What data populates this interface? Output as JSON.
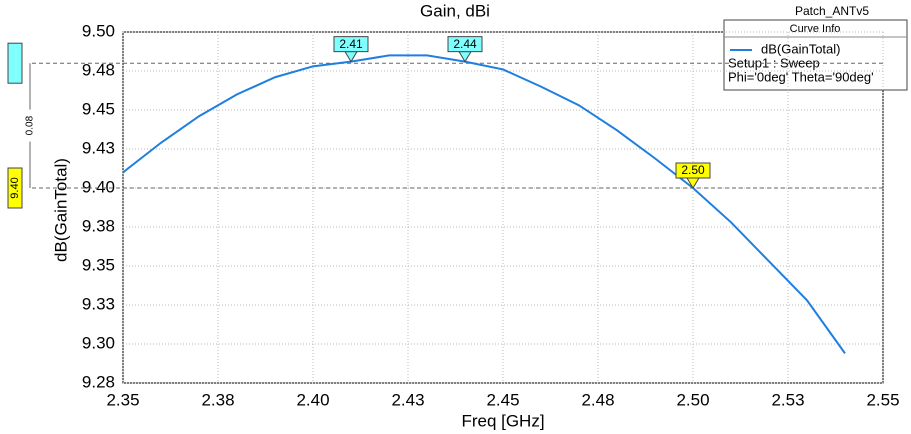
{
  "chart_data": {
    "type": "line",
    "title": "Gain, dBi",
    "project": "Patch_ANTv5",
    "x_label": "Freq [GHz]",
    "y_label": "dB(GainTotal)",
    "legend": {
      "title": "Curve Info",
      "lines": [
        "Setup1 : Sweep",
        "Phi='0deg' Theta='90deg'"
      ]
    },
    "x": [
      2.35,
      2.36,
      2.37,
      2.38,
      2.39,
      2.4,
      2.41,
      2.42,
      2.43,
      2.44,
      2.45,
      2.46,
      2.47,
      2.48,
      2.49,
      2.5,
      2.51,
      2.52,
      2.53,
      2.54
    ],
    "series": [
      {
        "name": "dB(GainTotal)",
        "color": "#1e7fe0",
        "values": [
          9.41,
          9.429,
          9.446,
          9.46,
          9.471,
          9.478,
          9.481,
          9.485,
          9.485,
          9.481,
          9.476,
          9.465,
          9.453,
          9.437,
          9.419,
          9.4,
          9.378,
          9.353,
          9.328,
          9.294
        ]
      }
    ],
    "xlim": [
      2.35,
      2.55
    ],
    "ylim": [
      9.275,
      9.5
    ],
    "xticks": [
      2.35,
      {
        "value": 2.375,
        "label": "2.38"
      },
      {
        "value": 2.4,
        "label": "2.40"
      },
      {
        "value": 2.425,
        "label": "2.43"
      },
      2.45,
      {
        "value": 2.475,
        "label": "2.48"
      },
      {
        "value": 2.5,
        "label": "2.50"
      },
      {
        "value": 2.525,
        "label": "2.53"
      },
      2.55
    ],
    "yticks": [
      {
        "value": 9.5,
        "label": "9.50"
      },
      {
        "value": 9.475,
        "label": "9.48"
      },
      9.45,
      {
        "value": 9.425,
        "label": "9.43"
      },
      {
        "value": 9.4,
        "label": "9.40"
      },
      {
        "value": 9.375,
        "label": "9.38"
      },
      9.35,
      {
        "value": 9.325,
        "label": "9.33"
      },
      {
        "value": 9.3,
        "label": "9.30"
      },
      {
        "value": 9.275,
        "label": "9.28"
      }
    ],
    "grid": true,
    "markers": [
      {
        "x": 2.41,
        "y": 9.481,
        "color": "#80ffff"
      },
      {
        "x": 2.44,
        "y": 9.481,
        "color": "#80ffff"
      },
      {
        "x": {
          "value": 2.5,
          "label": "2.50"
        },
        "y": 9.4,
        "color": "#ffff00"
      }
    ],
    "y_markers": [
      {
        "value": 9.48,
        "color": "#80ffff"
      },
      {
        "value": 9.4,
        "label": "9.40",
        "color": "#ffff00"
      }
    ],
    "y_delta": 0.08
  }
}
